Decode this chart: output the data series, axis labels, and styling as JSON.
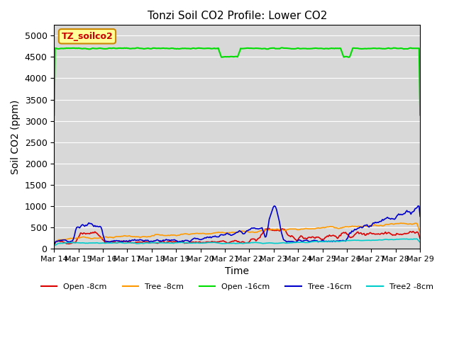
{
  "title": "Tonzi Soil CO2 Profile: Lower CO2",
  "xlabel": "Time",
  "ylabel": "Soil CO2 (ppm)",
  "ylim": [
    0,
    5250
  ],
  "yticks": [
    0,
    500,
    1000,
    1500,
    2000,
    2500,
    3000,
    3500,
    4000,
    4500,
    5000
  ],
  "bg_color": "#d8d8d8",
  "legend_label": "TZ_soilco2",
  "legend_bg": "#ffff99",
  "legend_border": "#cc8800",
  "series": {
    "open_8cm": {
      "color": "#dd0000",
      "label": "Open -8cm",
      "lw": 1.2
    },
    "tree_8cm": {
      "color": "#ff9900",
      "label": "Tree -8cm",
      "lw": 1.2
    },
    "open_16cm": {
      "color": "#00dd00",
      "label": "Open -16cm",
      "lw": 1.5
    },
    "tree_16cm": {
      "color": "#0000cc",
      "label": "Tree -16cm",
      "lw": 1.2
    },
    "tree2_8cm": {
      "color": "#00cccc",
      "label": "Tree2 -8cm",
      "lw": 1.2
    }
  },
  "n_points": 360,
  "x_start": 0,
  "x_end": 15,
  "x_ticks": [
    0,
    1,
    2,
    3,
    4,
    5,
    6,
    7,
    8,
    9,
    10,
    11,
    12,
    13,
    14,
    15
  ],
  "x_tick_labels": [
    "Mar 14",
    "Mar 15",
    "Mar 16",
    "Mar 17",
    "Mar 18",
    "Mar 19",
    "Mar 20",
    "Mar 21",
    "Mar 22",
    "Mar 23",
    "Mar 24",
    "Mar 25",
    "Mar 26",
    "Mar 27",
    "Mar 28",
    "Mar 29"
  ]
}
